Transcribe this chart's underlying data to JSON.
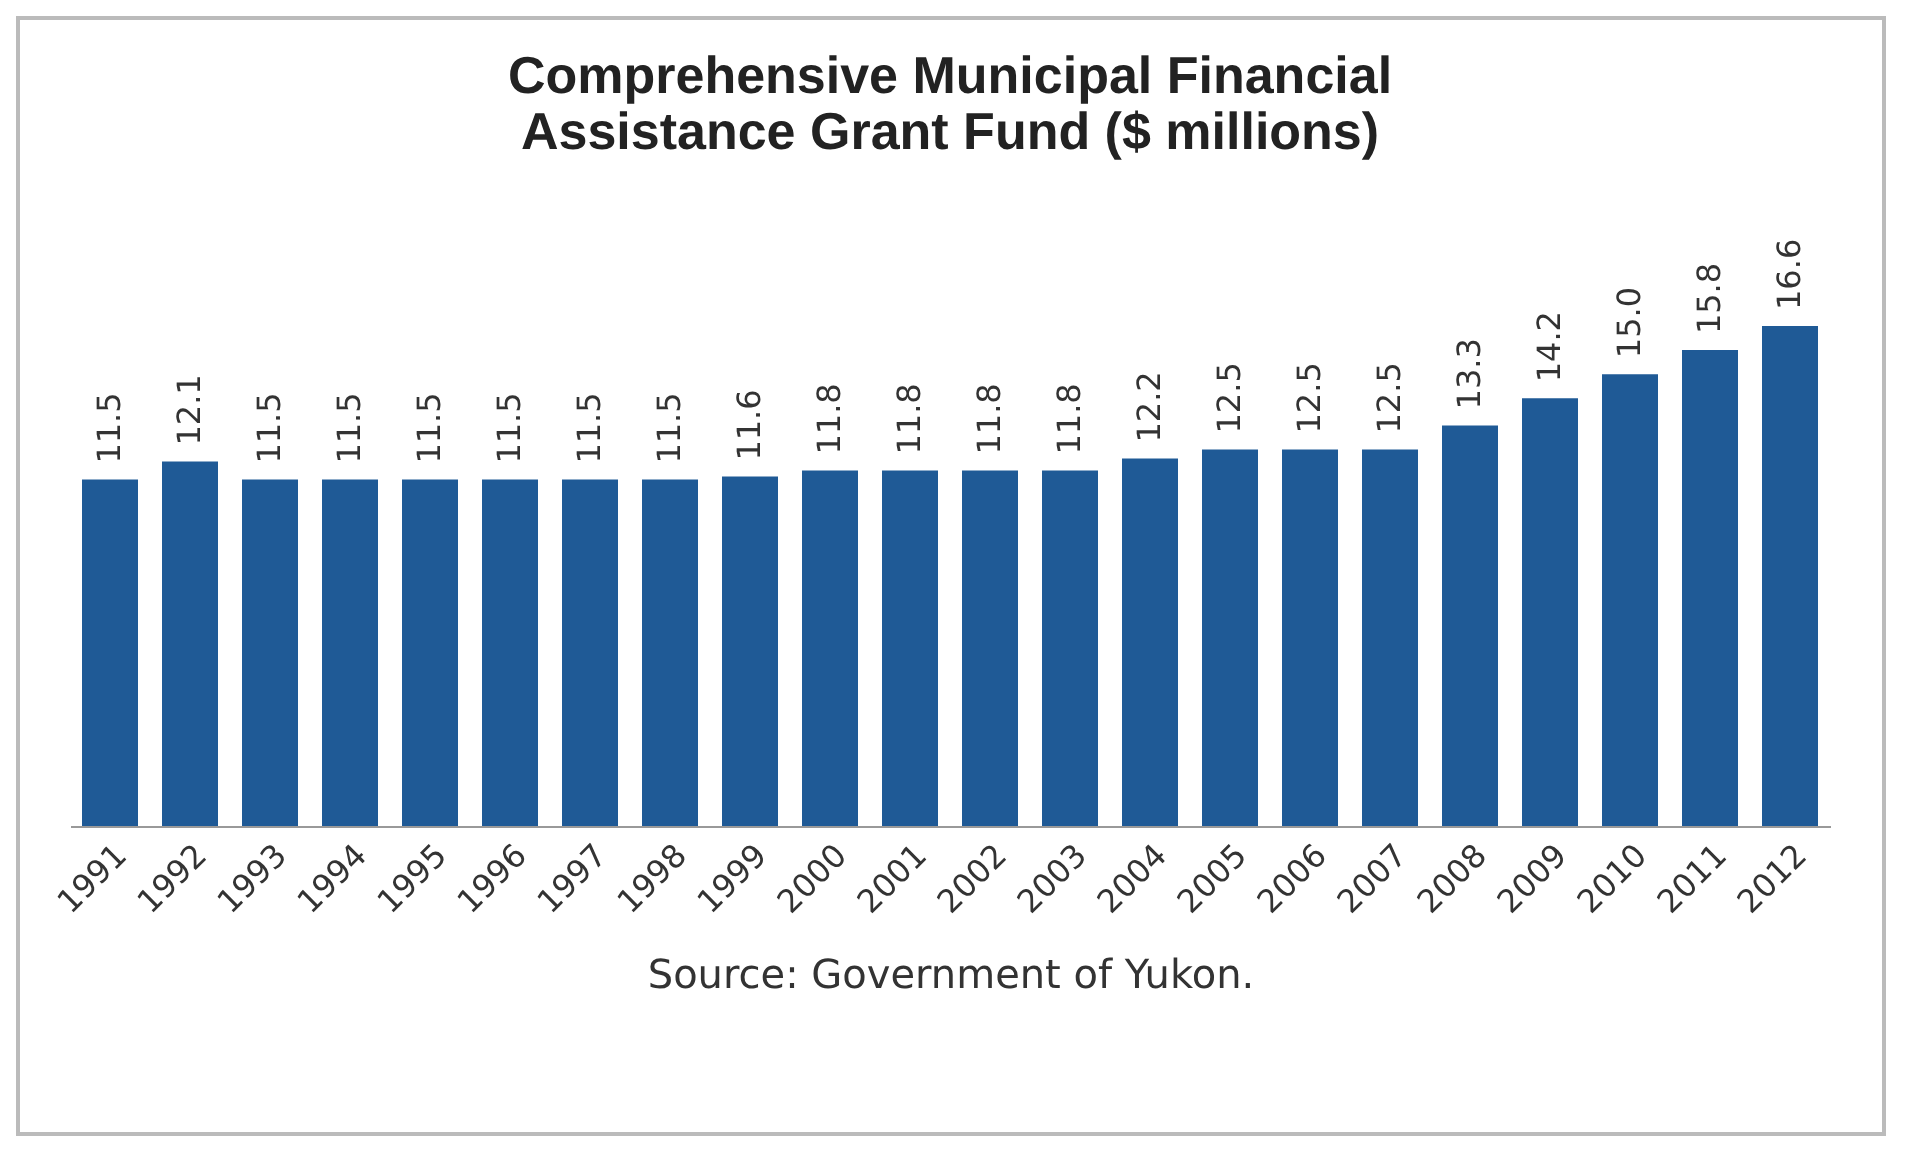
{
  "chart_data": {
    "type": "bar",
    "title": "Comprehensive Municipal Financial Assistance Grant Fund ($ millions)",
    "categories": [
      "1991",
      "1992",
      "1993",
      "1994",
      "1995",
      "1996",
      "1997",
      "1998",
      "1999",
      "2000",
      "2001",
      "2002",
      "2003",
      "2004",
      "2005",
      "2006",
      "2007",
      "2008",
      "2009",
      "2010",
      "2011",
      "2012"
    ],
    "values": [
      11.5,
      12.1,
      11.5,
      11.5,
      11.5,
      11.5,
      11.5,
      11.5,
      11.6,
      11.8,
      11.8,
      11.8,
      11.8,
      12.2,
      12.5,
      12.5,
      12.5,
      13.3,
      14.2,
      15.0,
      15.8,
      16.6
    ],
    "color": "#1f5a96",
    "value_labels": [
      "11.5",
      "12.1",
      "11.5",
      "11.5",
      "11.5",
      "11.5",
      "11.5",
      "11.5",
      "11.6",
      "11.8",
      "11.8",
      "11.8",
      "11.8",
      "12.2",
      "12.5",
      "12.5",
      "12.5",
      "13.3",
      "14.2",
      "15.0",
      "15.8",
      "16.6"
    ],
    "grid": false,
    "annotations": [
      "Source: Government of Yukon."
    ]
  }
}
